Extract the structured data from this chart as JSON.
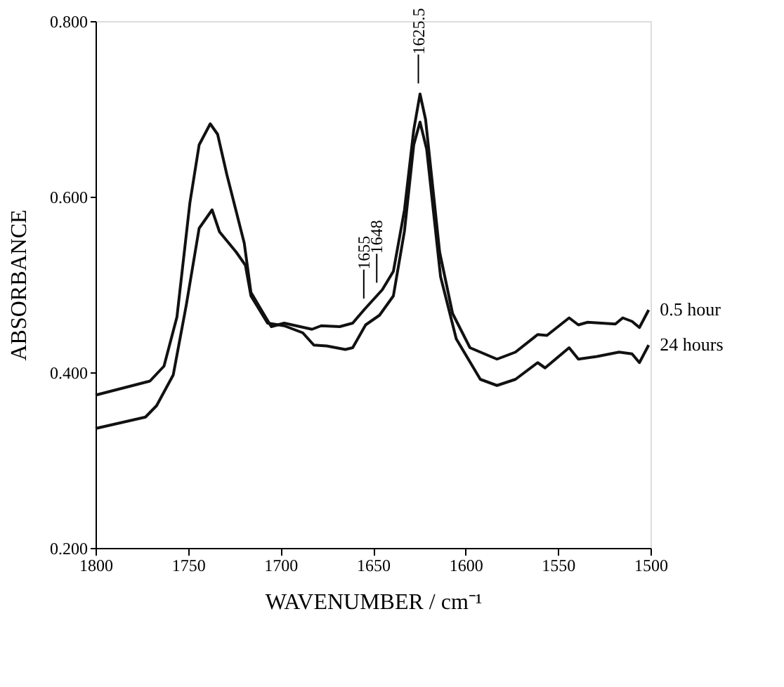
{
  "chart_data": {
    "type": "line",
    "xlabel": "WAVENUMBER / cm⁻¹",
    "ylabel": "ABSORBANCE",
    "xlim": [
      1800,
      1500
    ],
    "xticks": [
      1800,
      1750,
      1700,
      1650,
      1600,
      1550,
      1500
    ],
    "ylim": [
      0.2,
      0.8
    ],
    "yticks": [
      {
        "value": 0.2,
        "label": "0.200"
      },
      {
        "value": 0.4,
        "label": "0.400"
      },
      {
        "value": 0.6,
        "label": "0.600"
      },
      {
        "value": 0.8,
        "label": "0.800"
      }
    ],
    "grid": false,
    "marker": "none",
    "line_style": "solid",
    "annotations": [
      {
        "text": "1625.5",
        "x": 1625.5,
        "y": 0.717
      },
      {
        "text": "1655",
        "x": 1655,
        "y": 0.472
      },
      {
        "text": "1648",
        "x": 1648,
        "y": 0.49
      }
    ],
    "series": [
      {
        "name": "0.5 hour",
        "color": "#111111",
        "x": [
          1800,
          1770.6,
          1763,
          1756,
          1749,
          1744,
          1738,
          1734,
          1729,
          1719.6,
          1716,
          1707,
          1705,
          1698,
          1683,
          1678,
          1668,
          1661,
          1654.5,
          1645,
          1639,
          1633,
          1628,
          1624.6,
          1621.6,
          1614,
          1607,
          1597.6,
          1583,
          1573,
          1561,
          1556,
          1544,
          1539,
          1534,
          1519,
          1515,
          1510,
          1506,
          1501
        ],
        "values": [
          0.374,
          0.39,
          0.407,
          0.463,
          0.593,
          0.659,
          0.683,
          0.671,
          0.625,
          0.547,
          0.491,
          0.459,
          0.452,
          0.456,
          0.449,
          0.453,
          0.452,
          0.456,
          0.472,
          0.494,
          0.515,
          0.585,
          0.676,
          0.717,
          0.688,
          0.537,
          0.467,
          0.428,
          0.415,
          0.423,
          0.443,
          0.442,
          0.462,
          0.454,
          0.457,
          0.455,
          0.462,
          0.458,
          0.451,
          0.471
        ]
      },
      {
        "name": "24 hours",
        "color": "#111111",
        "x": [
          1800,
          1773,
          1767,
          1758,
          1751,
          1744,
          1737,
          1733,
          1724,
          1719,
          1716,
          1707,
          1698,
          1688,
          1682,
          1675,
          1665,
          1661,
          1654,
          1646.5,
          1639,
          1633,
          1628,
          1624.6,
          1621,
          1613.5,
          1605,
          1592,
          1583,
          1573,
          1561,
          1557,
          1544,
          1539,
          1529,
          1517,
          1510,
          1506,
          1501
        ],
        "values": [
          0.336,
          0.349,
          0.362,
          0.397,
          0.476,
          0.564,
          0.585,
          0.56,
          0.537,
          0.522,
          0.487,
          0.456,
          0.453,
          0.445,
          0.431,
          0.43,
          0.426,
          0.428,
          0.454,
          0.465,
          0.487,
          0.561,
          0.659,
          0.685,
          0.654,
          0.509,
          0.438,
          0.392,
          0.385,
          0.392,
          0.411,
          0.405,
          0.428,
          0.415,
          0.418,
          0.423,
          0.421,
          0.411,
          0.431
        ]
      }
    ]
  }
}
